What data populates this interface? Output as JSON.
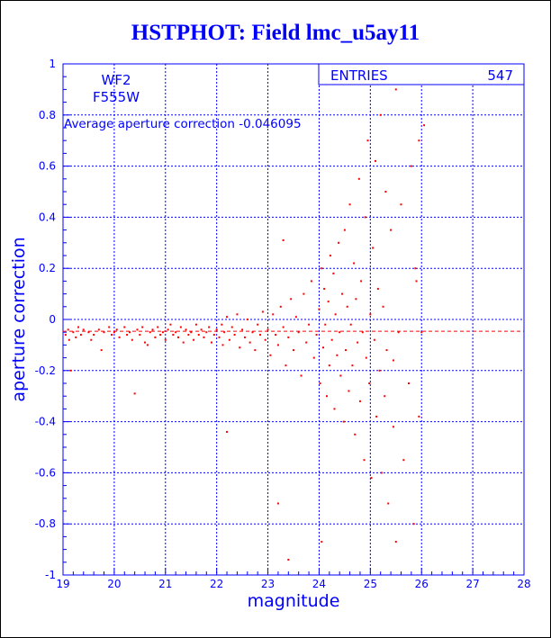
{
  "window": {
    "title": "HSTPHOT: Field lmc_u5ay11"
  },
  "colors": {
    "axis": "#0000ff",
    "points": "#ff0000",
    "title": "#0000ff",
    "average_line": "#ff0000"
  },
  "stats_box": {
    "label": "ENTRIES",
    "value": "547"
  },
  "annotations": {
    "camera": "WF2",
    "filter": "F555W",
    "average_text": "Average aperture correction -0.046095"
  },
  "chart_data": {
    "type": "scatter",
    "title": "HSTPHOT: Field lmc_u5ay11",
    "xlabel": "magnitude",
    "ylabel": "aperture correction",
    "xlim": [
      19,
      28
    ],
    "ylim": [
      -1,
      1
    ],
    "xticks": [
      "19",
      "20",
      "21",
      "22",
      "23",
      "24",
      "25",
      "26",
      "27",
      "28"
    ],
    "yticks": [
      "-1",
      "-0.8",
      "-0.6",
      "-0.4",
      "-0.2",
      "0",
      "0.2",
      "0.4",
      "0.6",
      "0.8",
      "1"
    ],
    "grid": true,
    "average": -0.046095,
    "entries": 547,
    "points": [
      [
        19.05,
        -0.06
      ],
      [
        19.1,
        -0.04
      ],
      [
        19.12,
        -0.08
      ],
      [
        19.2,
        -0.05
      ],
      [
        19.25,
        -0.07
      ],
      [
        19.3,
        -0.03
      ],
      [
        19.35,
        -0.06
      ],
      [
        19.4,
        -0.04
      ],
      [
        19.5,
        -0.05
      ],
      [
        19.55,
        -0.08
      ],
      [
        19.6,
        -0.06
      ],
      [
        19.7,
        -0.04
      ],
      [
        19.75,
        -0.12
      ],
      [
        19.8,
        -0.05
      ],
      [
        19.9,
        -0.03
      ],
      [
        19.95,
        -0.06
      ],
      [
        20.0,
        -0.05
      ],
      [
        20.05,
        -0.04
      ],
      [
        20.1,
        -0.07
      ],
      [
        20.2,
        -0.03
      ],
      [
        20.25,
        -0.06
      ],
      [
        20.3,
        -0.05
      ],
      [
        20.35,
        -0.08
      ],
      [
        20.45,
        -0.04
      ],
      [
        20.5,
        -0.06
      ],
      [
        20.55,
        -0.03
      ],
      [
        20.6,
        -0.09
      ],
      [
        20.65,
        -0.1
      ],
      [
        20.7,
        -0.05
      ],
      [
        20.75,
        -0.04
      ],
      [
        20.8,
        -0.07
      ],
      [
        20.85,
        -0.03
      ],
      [
        20.9,
        -0.06
      ],
      [
        20.95,
        -0.05
      ],
      [
        21.0,
        -0.08
      ],
      [
        21.05,
        -0.04
      ],
      [
        21.1,
        -0.02
      ],
      [
        21.15,
        -0.06
      ],
      [
        21.2,
        -0.05
      ],
      [
        21.25,
        -0.07
      ],
      [
        21.3,
        -0.03
      ],
      [
        21.35,
        -0.09
      ],
      [
        21.4,
        -0.04
      ],
      [
        21.45,
        -0.06
      ],
      [
        21.5,
        -0.05
      ],
      [
        21.55,
        -0.08
      ],
      [
        21.6,
        -0.02
      ],
      [
        21.65,
        -0.06
      ],
      [
        21.7,
        -0.04
      ],
      [
        21.75,
        -0.07
      ],
      [
        21.8,
        -0.05
      ],
      [
        21.85,
        -0.03
      ],
      [
        21.9,
        -0.09
      ],
      [
        21.95,
        -0.06
      ],
      [
        22.0,
        -0.04
      ],
      [
        22.05,
        -0.07
      ],
      [
        22.1,
        -0.02
      ],
      [
        22.12,
        -0.1
      ],
      [
        22.15,
        -0.05
      ],
      [
        22.2,
        0.01
      ],
      [
        22.25,
        -0.08
      ],
      [
        22.3,
        -0.03
      ],
      [
        22.35,
        -0.06
      ],
      [
        22.4,
        0.02
      ],
      [
        22.45,
        -0.11
      ],
      [
        22.5,
        -0.04
      ],
      [
        22.55,
        -0.07
      ],
      [
        22.6,
        0.0
      ],
      [
        22.65,
        -0.09
      ],
      [
        22.7,
        -0.05
      ],
      [
        22.75,
        -0.12
      ],
      [
        22.8,
        -0.02
      ],
      [
        22.85,
        -0.06
      ],
      [
        22.9,
        0.03
      ],
      [
        22.95,
        -0.08
      ],
      [
        23.0,
        -0.04
      ],
      [
        23.05,
        -0.14
      ],
      [
        23.1,
        0.02
      ],
      [
        23.15,
        -0.06
      ],
      [
        23.2,
        -0.1
      ],
      [
        23.25,
        0.05
      ],
      [
        23.3,
        -0.03
      ],
      [
        23.35,
        -0.18
      ],
      [
        23.4,
        -0.07
      ],
      [
        23.45,
        0.08
      ],
      [
        23.5,
        -0.12
      ],
      [
        23.55,
        0.01
      ],
      [
        23.6,
        -0.05
      ],
      [
        23.65,
        -0.22
      ],
      [
        23.7,
        0.1
      ],
      [
        23.75,
        -0.09
      ],
      [
        23.8,
        -0.02
      ],
      [
        23.85,
        0.15
      ],
      [
        23.9,
        -0.15
      ],
      [
        23.95,
        -0.06
      ],
      [
        24.0,
        0.04
      ],
      [
        24.02,
        -0.25
      ],
      [
        24.05,
        0.2
      ],
      [
        24.08,
        -0.11
      ],
      [
        24.1,
        0.12
      ],
      [
        24.12,
        -0.02
      ],
      [
        24.15,
        -0.3
      ],
      [
        24.18,
        0.07
      ],
      [
        24.2,
        -0.18
      ],
      [
        24.22,
        0.25
      ],
      [
        24.25,
        -0.08
      ],
      [
        24.28,
        0.18
      ],
      [
        24.3,
        -0.35
      ],
      [
        24.32,
        0.02
      ],
      [
        24.35,
        -0.14
      ],
      [
        24.38,
        0.3
      ],
      [
        24.4,
        -0.05
      ],
      [
        24.42,
        -0.22
      ],
      [
        24.45,
        0.1
      ],
      [
        24.48,
        -0.4
      ],
      [
        24.5,
        0.35
      ],
      [
        24.52,
        -0.12
      ],
      [
        24.55,
        0.05
      ],
      [
        24.58,
        -0.28
      ],
      [
        24.6,
        0.45
      ],
      [
        24.62,
        -0.02
      ],
      [
        24.65,
        -0.18
      ],
      [
        24.68,
        0.22
      ],
      [
        24.7,
        -0.45
      ],
      [
        24.72,
        0.08
      ],
      [
        24.75,
        -0.09
      ],
      [
        24.78,
        0.55
      ],
      [
        24.8,
        -0.32
      ],
      [
        24.82,
        0.15
      ],
      [
        24.85,
        -0.05
      ],
      [
        24.88,
        -0.55
      ],
      [
        24.9,
        0.4
      ],
      [
        24.92,
        -0.15
      ],
      [
        24.95,
        0.7
      ],
      [
        24.98,
        -0.25
      ],
      [
        25.0,
        0.02
      ],
      [
        25.02,
        -0.62
      ],
      [
        25.05,
        0.28
      ],
      [
        25.08,
        -0.08
      ],
      [
        25.1,
        0.62
      ],
      [
        25.12,
        -0.38
      ],
      [
        25.15,
        0.12
      ],
      [
        25.18,
        -0.2
      ],
      [
        25.2,
        0.8
      ],
      [
        25.22,
        -0.6
      ],
      [
        25.25,
        0.05
      ],
      [
        25.28,
        -0.3
      ],
      [
        25.3,
        0.5
      ],
      [
        25.32,
        -0.12
      ],
      [
        25.35,
        -0.72
      ],
      [
        25.4,
        0.35
      ],
      [
        25.45,
        -0.42
      ],
      [
        25.5,
        0.9
      ],
      [
        25.55,
        -0.05
      ],
      [
        25.6,
        0.45
      ],
      [
        25.65,
        -0.55
      ],
      [
        25.7,
        0.97
      ],
      [
        25.75,
        -0.25
      ],
      [
        25.8,
        0.6
      ],
      [
        25.85,
        -0.8
      ],
      [
        25.9,
        0.15
      ],
      [
        25.95,
        0.7
      ],
      [
        26.0,
        -0.05
      ],
      [
        19.15,
        -0.2
      ],
      [
        20.4,
        -0.29
      ],
      [
        22.2,
        -0.44
      ],
      [
        23.2,
        -0.72
      ],
      [
        23.4,
        -0.94
      ],
      [
        23.3,
        0.31
      ],
      [
        24.05,
        -0.87
      ],
      [
        25.5,
        -0.87
      ],
      [
        25.45,
        -0.16
      ],
      [
        25.95,
        -0.38
      ],
      [
        26.05,
        0.76
      ],
      [
        25.88,
        0.2
      ]
    ]
  }
}
